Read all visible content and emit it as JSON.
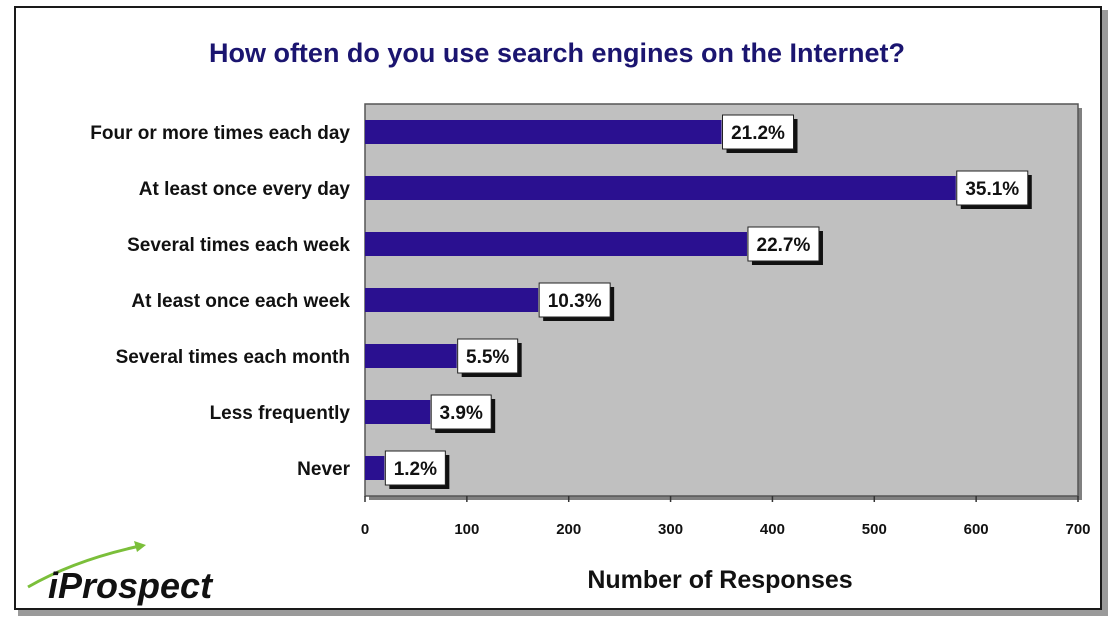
{
  "chart_data": {
    "type": "bar",
    "orientation": "horizontal",
    "title": "How often do you use search engines on the Internet?",
    "xlabel": "Number of Responses",
    "ylabel": "",
    "xlim": [
      0,
      700
    ],
    "xticks": [
      "0",
      "100",
      "200",
      "300",
      "400",
      "500",
      "600",
      "700"
    ],
    "grid": false,
    "categories": [
      "Four or more times each day",
      "At least once every day",
      "Several times each week",
      "At least once each week",
      "Several times each month",
      "Less frequently",
      "Never"
    ],
    "values": [
      350,
      580,
      375,
      170,
      90,
      64,
      19
    ],
    "data_labels": [
      "21.2%",
      "35.1%",
      "22.7%",
      "10.3%",
      "5.5%",
      "3.9%",
      "1.2%"
    ],
    "colors": {
      "bar": "#2a1090",
      "plot_bg": "#c0c0c0",
      "title": "#1b1570",
      "logo_swoosh": "#7bbf3a"
    }
  },
  "logo": {
    "text": "iProspect"
  }
}
